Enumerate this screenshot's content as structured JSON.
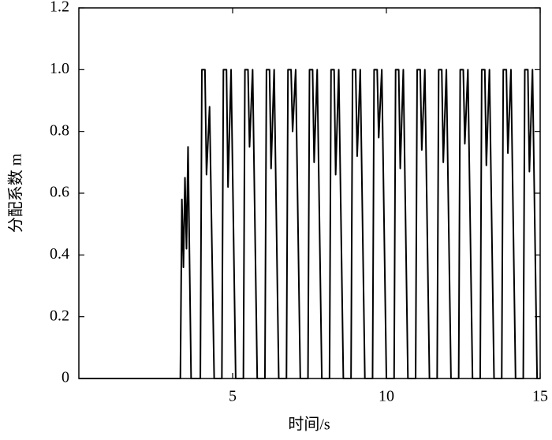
{
  "chart_data": {
    "type": "line",
    "x_label": "时间/s",
    "y_label": "分配系数 m",
    "xlim": [
      0,
      15
    ],
    "xticks": [
      5,
      10,
      15
    ],
    "ylim": [
      0,
      1.2
    ],
    "yticks": [
      0,
      0.2,
      0.4,
      0.6,
      0.8,
      {
        "value": 1,
        "label": "1.0"
      },
      1.2
    ],
    "grid": false,
    "series": [
      {
        "color": "#000000",
        "x": [
          0,
          3.3,
          3.35,
          3.4,
          3.45,
          3.5,
          3.55,
          3.65,
          3.95,
          4.0,
          4.1,
          4.15,
          4.25,
          4.4,
          4.65,
          4.7,
          4.8,
          4.85,
          4.95,
          5.1,
          5.35,
          5.4,
          5.5,
          5.55,
          5.65,
          5.8,
          6.05,
          6.1,
          6.2,
          6.25,
          6.35,
          6.5,
          6.75,
          6.8,
          6.9,
          6.95,
          7.05,
          7.2,
          7.45,
          7.5,
          7.6,
          7.65,
          7.75,
          7.9,
          8.15,
          8.2,
          8.3,
          8.35,
          8.45,
          8.6,
          8.85,
          8.9,
          9.0,
          9.05,
          9.15,
          9.3,
          9.55,
          9.6,
          9.7,
          9.75,
          9.85,
          10.0,
          10.25,
          10.3,
          10.4,
          10.45,
          10.55,
          10.7,
          10.95,
          11.0,
          11.1,
          11.15,
          11.25,
          11.4,
          11.65,
          11.7,
          11.8,
          11.85,
          11.95,
          12.1,
          12.35,
          12.4,
          12.5,
          12.55,
          12.65,
          12.8,
          13.05,
          13.1,
          13.2,
          13.25,
          13.35,
          13.5,
          13.75,
          13.8,
          13.9,
          13.95,
          14.05,
          14.2,
          14.45,
          14.5,
          14.6,
          14.65,
          14.75,
          14.9,
          15
        ],
        "values": [
          0,
          0,
          0.58,
          0.36,
          0.65,
          0.42,
          0.75,
          0,
          0,
          1,
          1,
          0.66,
          0.88,
          0,
          0,
          1,
          1,
          0.62,
          1,
          0,
          0,
          1,
          1,
          0.75,
          1,
          0,
          0,
          1,
          1,
          0.68,
          1,
          0,
          0,
          1,
          1,
          0.8,
          1,
          0,
          0,
          1,
          1,
          0.7,
          1,
          0,
          0,
          1,
          1,
          0.66,
          1,
          0,
          0,
          1,
          1,
          0.72,
          1,
          0,
          0,
          1,
          1,
          0.78,
          1,
          0,
          0,
          1,
          1,
          0.68,
          1,
          0,
          0,
          1,
          1,
          0.74,
          1,
          0,
          0,
          1,
          1,
          0.7,
          1,
          0,
          0,
          1,
          1,
          0.76,
          1,
          0,
          0,
          1,
          1,
          0.69,
          1,
          0,
          0,
          1,
          1,
          0.73,
          1,
          0,
          0,
          1,
          1,
          0.67,
          1,
          0,
          0
        ]
      }
    ]
  }
}
